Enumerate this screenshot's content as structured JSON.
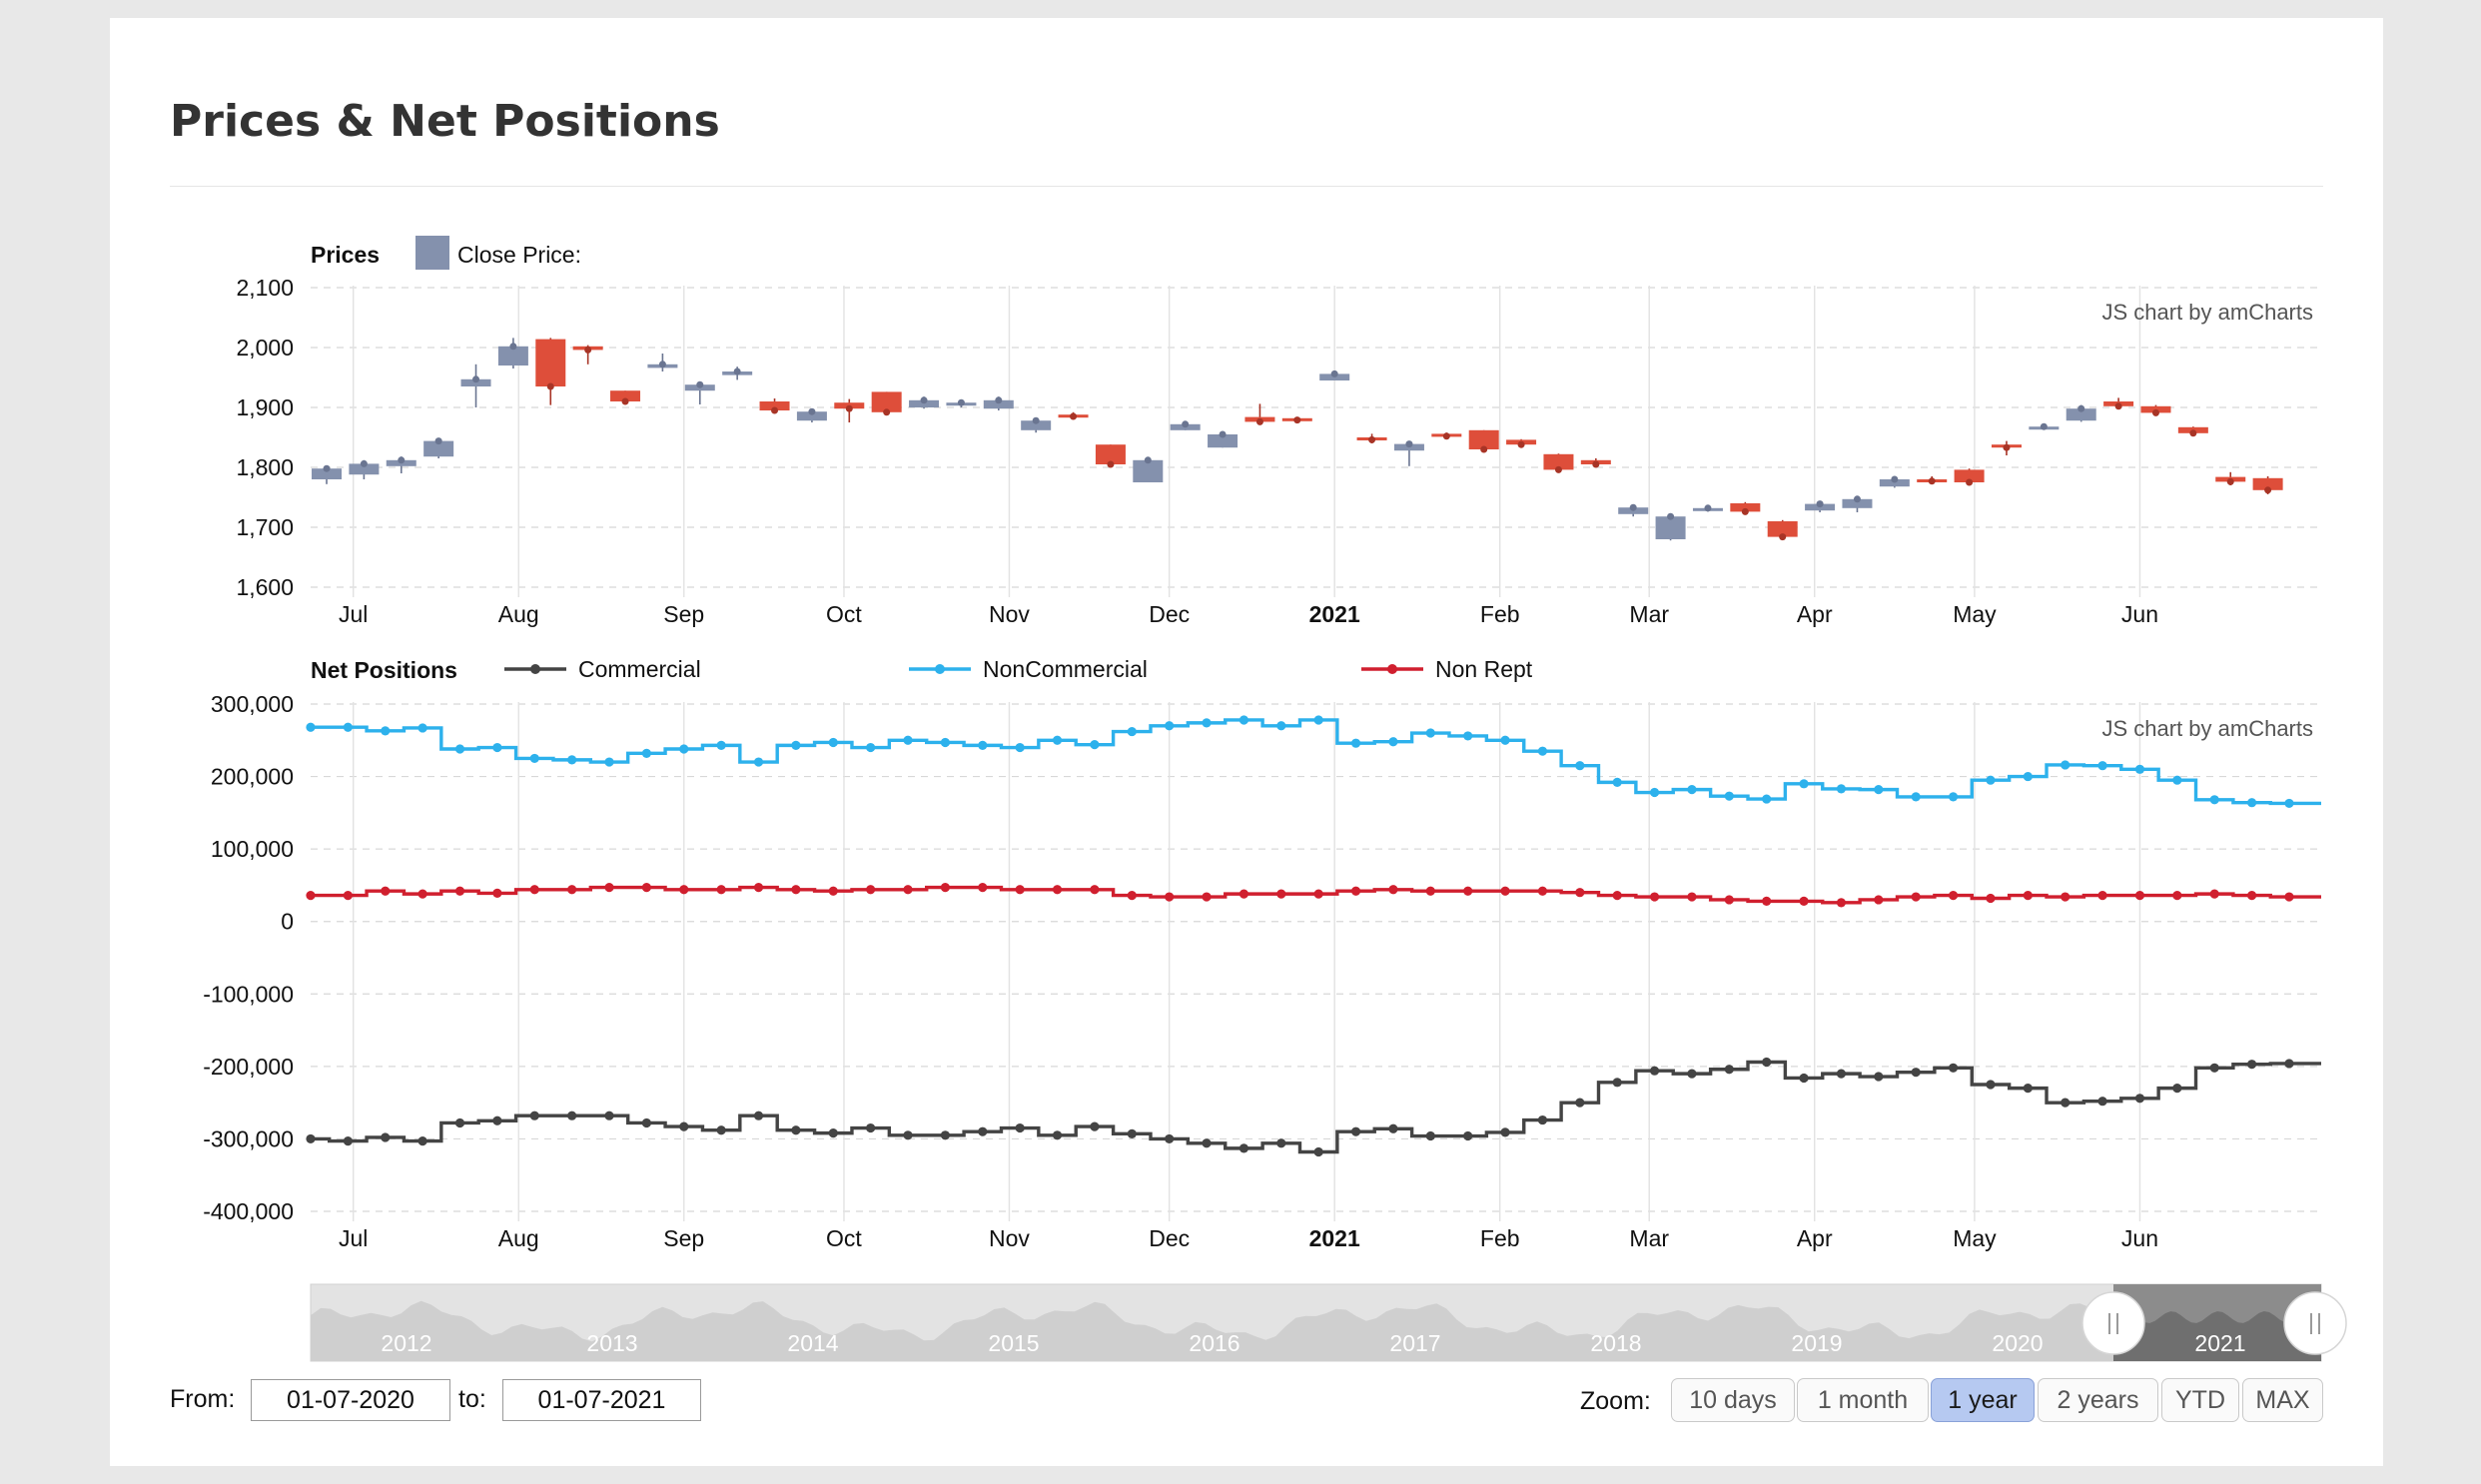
{
  "page": {
    "title": "Prices & Net Positions"
  },
  "credit": "JS chart by amCharts",
  "controls": {
    "from_label": "From:",
    "from_value": "01-07-2020",
    "to_label": "to:",
    "to_value": "01-07-2021",
    "zoom_label": "Zoom:",
    "zoom_buttons": [
      {
        "label": "10 days",
        "active": false
      },
      {
        "label": "1 month",
        "active": false
      },
      {
        "label": "1 year",
        "active": true
      },
      {
        "label": "2 years",
        "active": false
      },
      {
        "label": "YTD",
        "active": false
      },
      {
        "label": "MAX",
        "active": false
      }
    ]
  },
  "scrollbar": {
    "years": [
      "2012",
      "2013",
      "2014",
      "2015",
      "2016",
      "2017",
      "2018",
      "2019",
      "2020",
      "2021"
    ],
    "selected_start": "2020",
    "selected_end": "2021"
  },
  "chart_data": [
    {
      "type": "candlestick",
      "title": "Prices",
      "legend": [
        {
          "name": "Close Price:",
          "color": "#8491ad"
        }
      ],
      "x_ticks": [
        "Jul",
        "Aug",
        "Sep",
        "Oct",
        "Nov",
        "Dec",
        "2021",
        "Feb",
        "Mar",
        "Apr",
        "May",
        "Jun"
      ],
      "y_ticks": [
        "1,600",
        "1,700",
        "1,800",
        "1,900",
        "2,000",
        "2,100"
      ],
      "ylim": [
        1600,
        2100
      ],
      "grid": true,
      "up_color": "#8491ad",
      "down_color": "#de4e3a",
      "x_start": "2020-06-23",
      "x_end": "2021-07-05",
      "candles": [
        {
          "date": "2020-06-26",
          "open": 1780,
          "high": 1800,
          "low": 1772,
          "close": 1798
        },
        {
          "date": "2020-07-03",
          "open": 1788,
          "high": 1812,
          "low": 1780,
          "close": 1806
        },
        {
          "date": "2020-07-10",
          "open": 1802,
          "high": 1818,
          "low": 1790,
          "close": 1812
        },
        {
          "date": "2020-07-17",
          "open": 1818,
          "high": 1848,
          "low": 1815,
          "close": 1844
        },
        {
          "date": "2020-07-24",
          "open": 1935,
          "high": 1972,
          "low": 1900,
          "close": 1947
        },
        {
          "date": "2020-07-31",
          "open": 1970,
          "high": 2016,
          "low": 1965,
          "close": 2002
        },
        {
          "date": "2020-08-07",
          "open": 2014,
          "high": 2016,
          "low": 1904,
          "close": 1935
        },
        {
          "date": "2020-08-14",
          "open": 2002,
          "high": 2004,
          "low": 1972,
          "close": 1996
        },
        {
          "date": "2020-08-21",
          "open": 1928,
          "high": 1928,
          "low": 1908,
          "close": 1910
        },
        {
          "date": "2020-08-28",
          "open": 1966,
          "high": 1990,
          "low": 1960,
          "close": 1972
        },
        {
          "date": "2020-09-04",
          "open": 1928,
          "high": 1942,
          "low": 1905,
          "close": 1938
        },
        {
          "date": "2020-09-11",
          "open": 1954,
          "high": 1968,
          "low": 1946,
          "close": 1960
        },
        {
          "date": "2020-09-18",
          "open": 1910,
          "high": 1915,
          "low": 1892,
          "close": 1895
        },
        {
          "date": "2020-09-25",
          "open": 1878,
          "high": 1896,
          "low": 1875,
          "close": 1893
        },
        {
          "date": "2020-10-02",
          "open": 1908,
          "high": 1914,
          "low": 1875,
          "close": 1898
        },
        {
          "date": "2020-10-09",
          "open": 1926,
          "high": 1926,
          "low": 1890,
          "close": 1892
        },
        {
          "date": "2020-10-16",
          "open": 1900,
          "high": 1918,
          "low": 1898,
          "close": 1912
        },
        {
          "date": "2020-10-23",
          "open": 1904,
          "high": 1912,
          "low": 1900,
          "close": 1908
        },
        {
          "date": "2020-10-30",
          "open": 1898,
          "high": 1918,
          "low": 1895,
          "close": 1912
        },
        {
          "date": "2020-11-06",
          "open": 1862,
          "high": 1882,
          "low": 1858,
          "close": 1878
        },
        {
          "date": "2020-11-13",
          "open": 1888,
          "high": 1892,
          "low": 1883,
          "close": 1885
        },
        {
          "date": "2020-11-20",
          "open": 1838,
          "high": 1838,
          "low": 1800,
          "close": 1805
        },
        {
          "date": "2020-11-27",
          "open": 1775,
          "high": 1815,
          "low": 1775,
          "close": 1812
        },
        {
          "date": "2020-12-04",
          "open": 1862,
          "high": 1874,
          "low": 1862,
          "close": 1872
        },
        {
          "date": "2020-12-11",
          "open": 1833,
          "high": 1858,
          "low": 1833,
          "close": 1855
        },
        {
          "date": "2020-12-18",
          "open": 1884,
          "high": 1906,
          "low": 1872,
          "close": 1876
        },
        {
          "date": "2020-12-25",
          "open": 1882,
          "high": 1884,
          "low": 1878,
          "close": 1879
        },
        {
          "date": "2021-01-01",
          "open": 1945,
          "high": 1958,
          "low": 1945,
          "close": 1956
        },
        {
          "date": "2021-01-08",
          "open": 1850,
          "high": 1856,
          "low": 1840,
          "close": 1846
        },
        {
          "date": "2021-01-15",
          "open": 1828,
          "high": 1843,
          "low": 1802,
          "close": 1839
        },
        {
          "date": "2021-01-22",
          "open": 1856,
          "high": 1858,
          "low": 1850,
          "close": 1852
        },
        {
          "date": "2021-01-29",
          "open": 1862,
          "high": 1862,
          "low": 1828,
          "close": 1830
        },
        {
          "date": "2021-02-05",
          "open": 1846,
          "high": 1847,
          "low": 1836,
          "close": 1838
        },
        {
          "date": "2021-02-12",
          "open": 1822,
          "high": 1823,
          "low": 1792,
          "close": 1796
        },
        {
          "date": "2021-02-19",
          "open": 1812,
          "high": 1815,
          "low": 1800,
          "close": 1805
        },
        {
          "date": "2021-02-26",
          "open": 1722,
          "high": 1735,
          "low": 1718,
          "close": 1733
        },
        {
          "date": "2021-03-05",
          "open": 1680,
          "high": 1720,
          "low": 1678,
          "close": 1718
        },
        {
          "date": "2021-03-12",
          "open": 1728,
          "high": 1735,
          "low": 1726,
          "close": 1732
        },
        {
          "date": "2021-03-19",
          "open": 1740,
          "high": 1742,
          "low": 1724,
          "close": 1726
        },
        {
          "date": "2021-03-26",
          "open": 1710,
          "high": 1712,
          "low": 1680,
          "close": 1684
        },
        {
          "date": "2021-04-02",
          "open": 1728,
          "high": 1742,
          "low": 1725,
          "close": 1739
        },
        {
          "date": "2021-04-09",
          "open": 1732,
          "high": 1752,
          "low": 1725,
          "close": 1747
        },
        {
          "date": "2021-04-16",
          "open": 1768,
          "high": 1783,
          "low": 1766,
          "close": 1780
        },
        {
          "date": "2021-04-23",
          "open": 1780,
          "high": 1785,
          "low": 1774,
          "close": 1777
        },
        {
          "date": "2021-04-30",
          "open": 1796,
          "high": 1798,
          "low": 1771,
          "close": 1775
        },
        {
          "date": "2021-05-07",
          "open": 1838,
          "high": 1844,
          "low": 1820,
          "close": 1833
        },
        {
          "date": "2021-05-14",
          "open": 1866,
          "high": 1870,
          "low": 1864,
          "close": 1868
        },
        {
          "date": "2021-05-21",
          "open": 1878,
          "high": 1904,
          "low": 1876,
          "close": 1898
        },
        {
          "date": "2021-05-28",
          "open": 1910,
          "high": 1916,
          "low": 1900,
          "close": 1902
        },
        {
          "date": "2021-06-04",
          "open": 1902,
          "high": 1904,
          "low": 1888,
          "close": 1891
        },
        {
          "date": "2021-06-11",
          "open": 1867,
          "high": 1868,
          "low": 1854,
          "close": 1857
        },
        {
          "date": "2021-06-18",
          "open": 1784,
          "high": 1792,
          "low": 1770,
          "close": 1776
        },
        {
          "date": "2021-06-25",
          "open": 1782,
          "high": 1785,
          "low": 1755,
          "close": 1762
        }
      ]
    },
    {
      "type": "line",
      "step": true,
      "title": "Net Positions",
      "x_ticks": [
        "Jul",
        "Aug",
        "Sep",
        "Oct",
        "Nov",
        "Dec",
        "2021",
        "Feb",
        "Mar",
        "Apr",
        "May",
        "Jun"
      ],
      "y_ticks": [
        "-400,000",
        "-300,000",
        "-200,000",
        "-100,000",
        "0",
        "100,000",
        "200,000",
        "300,000"
      ],
      "ylim": [
        -400000,
        300000
      ],
      "grid": true,
      "x": [
        "2020-06-23",
        "2020-06-30",
        "2020-07-07",
        "2020-07-14",
        "2020-07-21",
        "2020-07-28",
        "2020-08-04",
        "2020-08-11",
        "2020-08-18",
        "2020-08-25",
        "2020-09-01",
        "2020-09-08",
        "2020-09-15",
        "2020-09-22",
        "2020-09-29",
        "2020-10-06",
        "2020-10-13",
        "2020-10-20",
        "2020-10-27",
        "2020-11-03",
        "2020-11-10",
        "2020-11-17",
        "2020-11-24",
        "2020-12-01",
        "2020-12-08",
        "2020-12-15",
        "2020-12-22",
        "2020-12-29",
        "2021-01-05",
        "2021-01-12",
        "2021-01-19",
        "2021-01-26",
        "2021-02-02",
        "2021-02-09",
        "2021-02-16",
        "2021-02-23",
        "2021-03-02",
        "2021-03-09",
        "2021-03-16",
        "2021-03-23",
        "2021-03-30",
        "2021-04-06",
        "2021-04-13",
        "2021-04-20",
        "2021-04-27",
        "2021-05-04",
        "2021-05-11",
        "2021-05-18",
        "2021-05-25",
        "2021-06-01",
        "2021-06-08",
        "2021-06-15",
        "2021-06-22",
        "2021-06-29"
      ],
      "series": [
        {
          "name": "Commercial",
          "color": "#444444",
          "values": [
            -300000,
            -303000,
            -298000,
            -303000,
            -278000,
            -275000,
            -268000,
            -268000,
            -268000,
            -278000,
            -283000,
            -288000,
            -268000,
            -288000,
            -292000,
            -285000,
            -295000,
            -295000,
            -290000,
            -285000,
            -295000,
            -283000,
            -293000,
            -300000,
            -306000,
            -313000,
            -306000,
            -318000,
            -290000,
            -286000,
            -296000,
            -296000,
            -291000,
            -274000,
            -250000,
            -222000,
            -206000,
            -210000,
            -204000,
            -194000,
            -216000,
            -210000,
            -214000,
            -208000,
            -202000,
            -225000,
            -230000,
            -250000,
            -248000,
            -244000,
            -230000,
            -202000,
            -197000,
            -196000
          ]
        },
        {
          "name": "NonCommercial",
          "color": "#2db1ec",
          "values": [
            268000,
            268000,
            263000,
            267000,
            238000,
            240000,
            225000,
            223000,
            220000,
            232000,
            238000,
            243000,
            220000,
            243000,
            247000,
            240000,
            250000,
            247000,
            243000,
            240000,
            250000,
            244000,
            262000,
            270000,
            274000,
            278000,
            270000,
            278000,
            246000,
            248000,
            260000,
            256000,
            250000,
            235000,
            215000,
            192000,
            178000,
            182000,
            173000,
            169000,
            190000,
            183000,
            182000,
            172000,
            172000,
            195000,
            200000,
            216000,
            215000,
            210000,
            195000,
            168000,
            164000,
            163000
          ]
        },
        {
          "name": "Non Rept",
          "color": "#d01f2e",
          "values": [
            36000,
            36000,
            42000,
            38000,
            42000,
            39000,
            44000,
            44000,
            47000,
            47000,
            44000,
            44000,
            47000,
            44000,
            42000,
            44000,
            44000,
            47000,
            47000,
            44000,
            44000,
            44000,
            36000,
            34000,
            34000,
            38000,
            38000,
            38000,
            42000,
            44000,
            42000,
            42000,
            42000,
            42000,
            40000,
            36000,
            34000,
            34000,
            30000,
            28000,
            28000,
            26000,
            30000,
            34000,
            36000,
            32000,
            36000,
            34000,
            36000,
            36000,
            36000,
            38000,
            36000,
            34000
          ]
        }
      ]
    }
  ]
}
